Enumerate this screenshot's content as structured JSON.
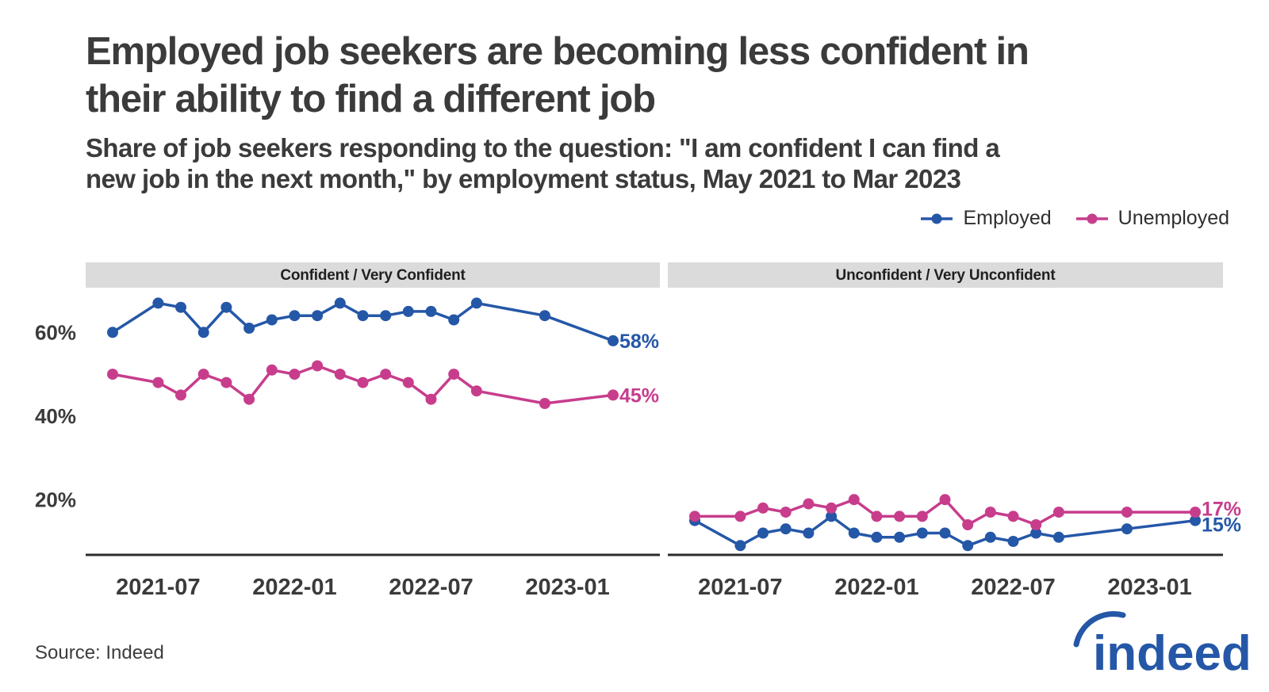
{
  "title": "Employed job seekers are becoming less confident in\ntheir ability to find a different job",
  "subtitle": "Share of job seekers responding to the question: \"I am confident I can find a\nnew job in the next month,\" by employment status, May 2021 to Mar 2023",
  "source": "Source: Indeed",
  "logo_text": "indeed",
  "colors": {
    "employed": "#2557a7",
    "unemployed": "#c73d8c",
    "axis": "#2b2b2b",
    "text_dark": "#3b3b3b",
    "panel_header_bg": "#dbdbdb",
    "brand_blue": "#2557a7"
  },
  "legend": {
    "items": [
      {
        "label": "Employed",
        "color_key": "employed"
      },
      {
        "label": "Unemployed",
        "color_key": "unemployed"
      }
    ],
    "position": "top-right"
  },
  "axis": {
    "y_ticks": [
      "60%",
      "40%",
      "20%"
    ],
    "y_tick_values": [
      60,
      40,
      20
    ],
    "x_ticks": [
      "2021-07",
      "2022-01",
      "2022-07",
      "2023-01"
    ],
    "ylim": [
      7,
      72
    ],
    "grid": false
  },
  "chart_data": [
    {
      "type": "line",
      "panel_title": "Confident / Very Confident",
      "x": [
        "2021-05",
        "2021-07",
        "2021-08",
        "2021-09",
        "2021-10",
        "2021-11",
        "2021-12",
        "2022-01",
        "2022-02",
        "2022-03",
        "2022-04",
        "2022-05",
        "2022-06",
        "2022-07",
        "2022-08",
        "2022-09",
        "2022-12",
        "2023-03"
      ],
      "series": [
        {
          "name": "Employed",
          "color_key": "employed",
          "end_label": "58%",
          "values": [
            60,
            67,
            66,
            60,
            66,
            61,
            63,
            64,
            64,
            67,
            64,
            64,
            65,
            65,
            63,
            67,
            64,
            58
          ]
        },
        {
          "name": "Unemployed",
          "color_key": "unemployed",
          "end_label": "45%",
          "values": [
            50,
            48,
            45,
            50,
            48,
            44,
            51,
            50,
            52,
            50,
            48,
            50,
            48,
            44,
            50,
            46,
            43,
            45
          ]
        }
      ]
    },
    {
      "type": "line",
      "panel_title": "Unconfident / Very Unconfident",
      "x": [
        "2021-05",
        "2021-07",
        "2021-08",
        "2021-09",
        "2021-10",
        "2021-11",
        "2021-12",
        "2022-01",
        "2022-02",
        "2022-03",
        "2022-04",
        "2022-05",
        "2022-06",
        "2022-07",
        "2022-08",
        "2022-09",
        "2022-12",
        "2023-03"
      ],
      "series": [
        {
          "name": "Employed",
          "color_key": "employed",
          "end_label": "15%",
          "values": [
            15,
            9,
            12,
            13,
            12,
            16,
            12,
            11,
            11,
            12,
            12,
            9,
            11,
            10,
            12,
            11,
            13,
            15
          ]
        },
        {
          "name": "Unemployed",
          "color_key": "unemployed",
          "end_label": "17%",
          "values": [
            16,
            16,
            18,
            17,
            19,
            18,
            20,
            16,
            16,
            16,
            20,
            14,
            17,
            16,
            14,
            17,
            17,
            17
          ]
        }
      ]
    }
  ]
}
